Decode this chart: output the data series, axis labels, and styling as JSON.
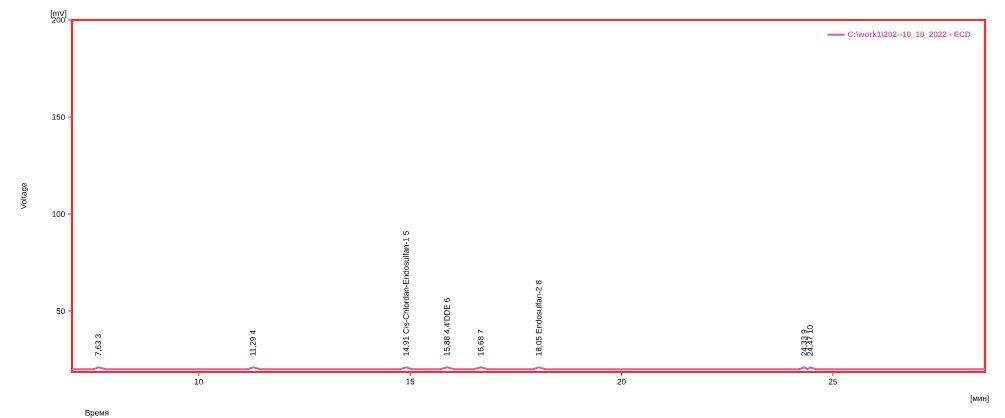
{
  "chart_data": {
    "type": "line",
    "xlabel": "Время",
    "ylabel": "Voltage",
    "xlim": [
      7,
      28.6
    ],
    "ylim": [
      18.6,
      200
    ],
    "xticks": [
      10,
      15,
      20,
      25
    ],
    "yticks": [
      50,
      100,
      150,
      200
    ],
    "series": [
      {
        "name": "C:\\work1\\202--10_10_2022 - ECD",
        "color": "#d9609b",
        "x": [
          7,
          7.5,
          7.63,
          7.8,
          9,
          10,
          11,
          11.15,
          11.29,
          11.45,
          12,
          13,
          14,
          14.75,
          14.91,
          15.05,
          15.7,
          15.88,
          16.05,
          16.5,
          16.68,
          16.85,
          17.9,
          18.05,
          18.2,
          19,
          20,
          21,
          22,
          23,
          24,
          24.2,
          24.33,
          24.4,
          24.47,
          24.6,
          25,
          26,
          27,
          28,
          28.6
        ],
        "values": [
          20,
          20,
          21,
          20,
          20,
          20,
          20,
          20,
          21,
          20,
          20,
          20,
          20,
          20,
          21,
          20,
          20,
          21,
          20,
          20,
          21,
          20,
          20,
          21,
          20,
          20,
          20,
          20,
          20,
          20,
          20,
          20,
          21,
          20,
          21,
          20,
          20,
          20,
          20,
          20,
          20
        ]
      }
    ],
    "legend": "top right",
    "annotations": [
      {
        "text": "7,63  3",
        "x": 7.63,
        "y": 21
      },
      {
        "text": "11,29  4",
        "x": 11.29,
        "y": 21
      },
      {
        "text": "14,91  Cis-Chlordan-Endosulfan-1  5",
        "x": 14.91,
        "y": 21
      },
      {
        "text": "15,88  4,4'DDE  6",
        "x": 15.88,
        "y": 21
      },
      {
        "text": "16,68  7",
        "x": 16.68,
        "y": 21
      },
      {
        "text": "18,05  Endosulfan-2  8",
        "x": 18.05,
        "y": 21
      },
      {
        "text": "24,33  9",
        "x": 24.33,
        "y": 21
      },
      {
        "text": "24,47  10",
        "x": 24.47,
        "y": 21
      },
      "[mV]",
      "[мин]"
    ]
  }
}
